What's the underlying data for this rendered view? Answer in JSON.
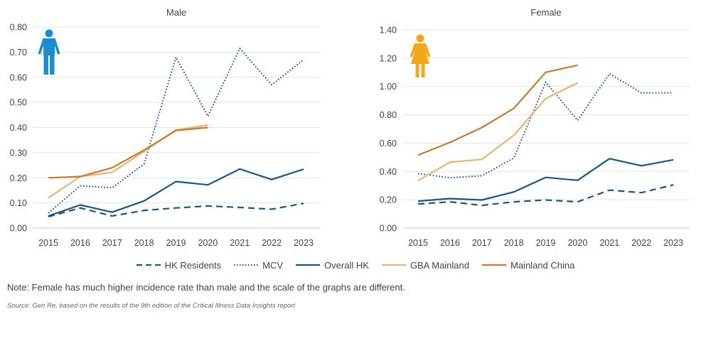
{
  "chart_data": [
    {
      "type": "line",
      "title": "Male",
      "icon": "male-person-icon",
      "icon_color": "#1a8ccf",
      "categories": [
        "2015",
        "2016",
        "2017",
        "2018",
        "2019",
        "2020",
        "2021",
        "2022",
        "2023"
      ],
      "ylim": [
        0,
        0.8
      ],
      "yticks": [
        "0.00",
        "0.10",
        "0.20",
        "0.30",
        "0.40",
        "0.50",
        "0.60",
        "0.70",
        "0.80"
      ],
      "grid": true,
      "series": [
        {
          "name": "HK Residents",
          "values": [
            0.045,
            0.08,
            0.048,
            0.07,
            0.08,
            0.088,
            0.082,
            0.075,
            0.098
          ]
        },
        {
          "name": "MCV",
          "values": [
            0.06,
            0.168,
            0.16,
            0.255,
            0.68,
            0.445,
            0.715,
            0.57,
            0.67
          ]
        },
        {
          "name": "Overall HK",
          "values": [
            0.048,
            0.092,
            0.063,
            0.108,
            0.185,
            0.172,
            0.235,
            0.193,
            0.234
          ]
        },
        {
          "name": "GBA Mainland",
          "values": [
            0.12,
            0.205,
            0.222,
            0.305,
            0.39,
            0.41,
            null,
            null,
            null
          ]
        },
        {
          "name": "Mainland China",
          "values": [
            0.2,
            0.205,
            0.24,
            0.31,
            0.388,
            0.4,
            null,
            null,
            null
          ]
        }
      ]
    },
    {
      "type": "line",
      "title": "Female",
      "icon": "female-person-icon",
      "icon_color": "#f2a81d",
      "categories": [
        "2015",
        "2016",
        "2017",
        "2018",
        "2019",
        "2020",
        "2021",
        "2022",
        "2023"
      ],
      "ylim": [
        0,
        1.4
      ],
      "yticks": [
        "0.00",
        "0.20",
        "0.40",
        "0.60",
        "0.80",
        "1.00",
        "1.20",
        "1.40"
      ],
      "grid": true,
      "series": [
        {
          "name": "HK Residents",
          "values": [
            0.17,
            0.185,
            0.16,
            0.185,
            0.198,
            0.185,
            0.268,
            0.25,
            0.305
          ]
        },
        {
          "name": "MCV",
          "values": [
            0.385,
            0.355,
            0.37,
            0.495,
            1.03,
            0.76,
            1.09,
            0.955,
            0.955
          ]
        },
        {
          "name": "Overall HK",
          "values": [
            0.19,
            0.208,
            0.198,
            0.255,
            0.358,
            0.337,
            0.49,
            0.44,
            0.482
          ]
        },
        {
          "name": "GBA Mainland",
          "values": [
            0.335,
            0.465,
            0.485,
            0.655,
            0.915,
            1.025,
            null,
            null,
            null
          ]
        },
        {
          "name": "Mainland China",
          "values": [
            0.515,
            0.605,
            0.71,
            0.845,
            1.1,
            1.15,
            null,
            null,
            null
          ]
        }
      ]
    }
  ],
  "legend": [
    {
      "name": "HK Residents",
      "color": "#1b5582",
      "style": "dashed"
    },
    {
      "name": "MCV",
      "color": "#1b5582",
      "style": "dotted"
    },
    {
      "name": "Overall HK",
      "color": "#1b5582",
      "style": "solid"
    },
    {
      "name": "GBA Mainland",
      "color": "#e6b37a",
      "style": "solid"
    },
    {
      "name": "Mainland China",
      "color": "#c8782f",
      "style": "solid"
    }
  ],
  "note": "Note: Female has much higher incidence rate than male and the scale of the graphs are different.",
  "source": "Source: Gen Re, based on the results of the 9th edition of the Critical Illness Data Insights report"
}
